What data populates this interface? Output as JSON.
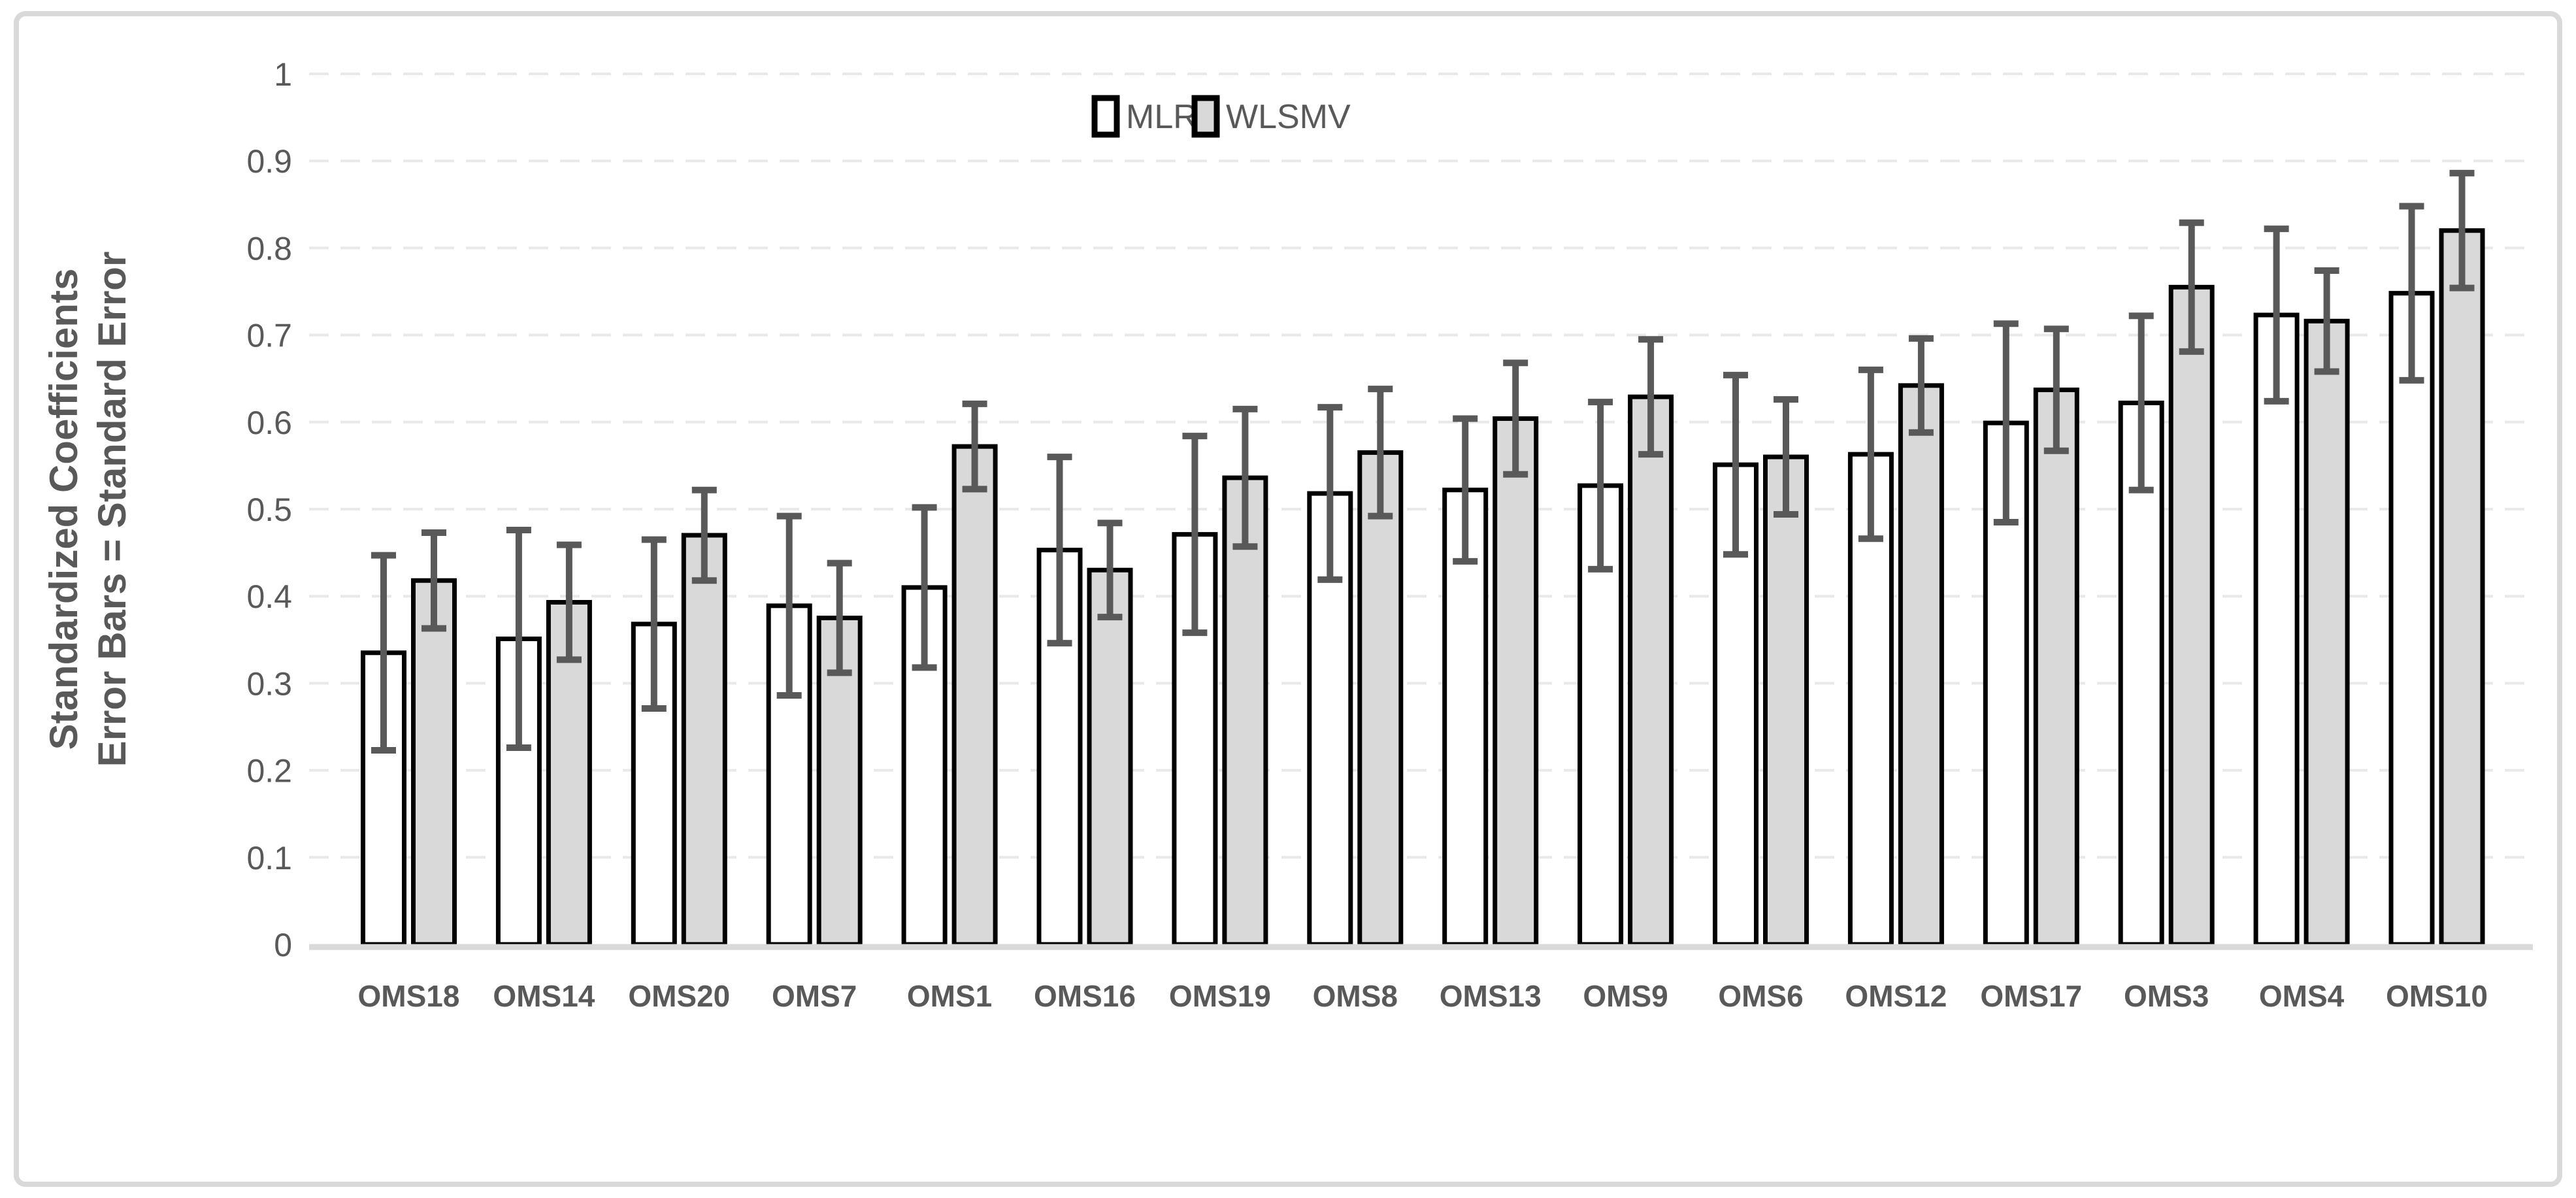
{
  "chart_data": {
    "type": "bar",
    "title": "",
    "categories": [
      "OMS18",
      "OMS14",
      "OMS20",
      "OMS7",
      "OMS1",
      "OMS16",
      "OMS19",
      "OMS8",
      "OMS13",
      "OMS9",
      "OMS6",
      "OMS12",
      "OMS17",
      "OMS3",
      "OMS4",
      "OMS10"
    ],
    "series": [
      {
        "name": "MLR",
        "fill": "#ffffff",
        "values": [
          0.335,
          0.351,
          0.368,
          0.389,
          0.41,
          0.453,
          0.471,
          0.518,
          0.522,
          0.527,
          0.551,
          0.563,
          0.599,
          0.622,
          0.723,
          0.748
        ],
        "errors": [
          0.112,
          0.125,
          0.097,
          0.103,
          0.092,
          0.107,
          0.113,
          0.099,
          0.082,
          0.096,
          0.103,
          0.097,
          0.114,
          0.1,
          0.099,
          0.1
        ]
      },
      {
        "name": "WLSMV",
        "fill": "#d9d9d9",
        "values": [
          0.418,
          0.393,
          0.47,
          0.375,
          0.572,
          0.43,
          0.536,
          0.565,
          0.604,
          0.629,
          0.56,
          0.642,
          0.637,
          0.755,
          0.716,
          0.82
        ],
        "errors": [
          0.055,
          0.066,
          0.052,
          0.063,
          0.049,
          0.054,
          0.079,
          0.073,
          0.064,
          0.066,
          0.066,
          0.054,
          0.07,
          0.074,
          0.058,
          0.066
        ]
      }
    ],
    "ylabel_lines": [
      "Standardized Coefficients",
      "Error Bars = Standard Error"
    ],
    "xlabel": "",
    "ylim": [
      0,
      1
    ],
    "y_axis": {
      "tick_values": [
        0,
        0.1,
        0.2,
        0.3,
        0.4,
        0.5,
        0.6,
        0.7,
        0.8,
        0.9,
        1
      ],
      "tick_labels": [
        "0",
        "0.1",
        "0.2",
        "0.3",
        "0.4",
        "0.5",
        "0.6",
        "0.7",
        "0.8",
        "0.9",
        "1"
      ]
    },
    "legend": {
      "entries": [
        "MLR",
        "WLSMV"
      ],
      "position": "top-center"
    },
    "grid": {
      "style": "dashed",
      "axis": "horizontal"
    },
    "colors": {
      "bar_border": "#000000",
      "error_bar": "#595959",
      "gridline": "#e9e9e9",
      "axis_line": "#d9d9d9",
      "text": "#595959",
      "panel_border": "#d9d9d9",
      "background": "#ffffff"
    }
  }
}
